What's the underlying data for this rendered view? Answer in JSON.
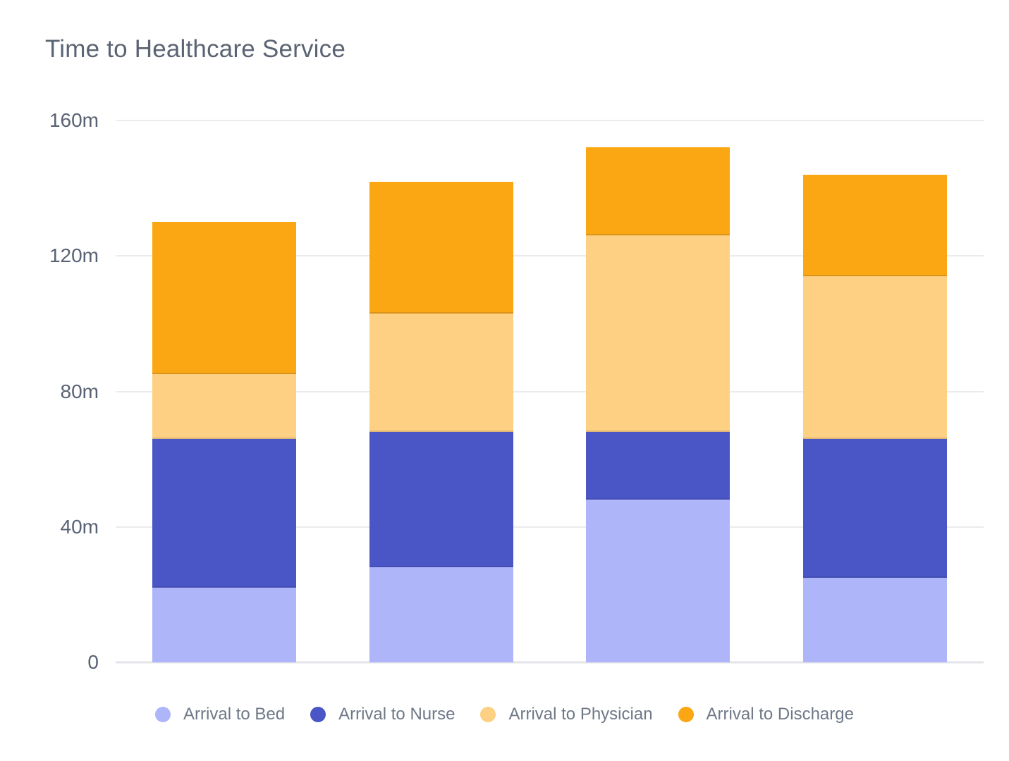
{
  "title": "Time to Healthcare Service",
  "chart_data": {
    "type": "bar",
    "stacked": true,
    "title": "Time to Healthcare Service",
    "categories": [
      "",
      "",
      "",
      ""
    ],
    "series": [
      {
        "name": "Arrival to Bed",
        "color": "#aeb5f8",
        "values": [
          22,
          28,
          48,
          25
        ]
      },
      {
        "name": "Arrival to Nurse",
        "color": "#4a56c5",
        "values": [
          44,
          40,
          20,
          41
        ]
      },
      {
        "name": "Arrival to Physician",
        "color": "#fdd083",
        "values": [
          19,
          35,
          58,
          48
        ]
      },
      {
        "name": "Arrival to Discharge",
        "color": "#fba713",
        "values": [
          45,
          39,
          26,
          30
        ]
      }
    ],
    "stack_totals": [
      130,
      142,
      152,
      144
    ],
    "xlabel": "",
    "ylabel": "",
    "unit": "minutes",
    "y_ticks": [
      "160m",
      "120m",
      "80m",
      "40m",
      "0"
    ],
    "ylim": [
      0,
      160
    ],
    "grid": true,
    "legend_position": "bottom"
  },
  "colors": {
    "background": "#ffffff",
    "title_text": "#5b6473",
    "tick_text": "#596273",
    "legend_text": "#6f7886",
    "gridline": "#eaebee",
    "baseline": "#e2e4e8"
  }
}
